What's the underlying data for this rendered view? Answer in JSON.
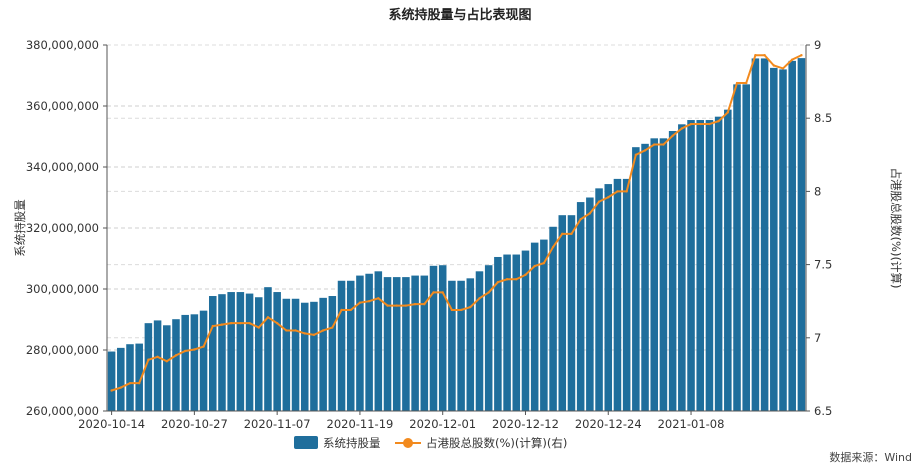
{
  "chart_data": {
    "type": "bar+line",
    "title": "系统持股量与占比表现图",
    "ylabel_left": "系统持股量",
    "ylabel_right": "占港股总股数(%)(计算)",
    "ylim_left": [
      260000000,
      380000000
    ],
    "yticks_left": [
      "260,000,000",
      "280,000,000",
      "300,000,000",
      "320,000,000",
      "340,000,000",
      "360,000,000",
      "380,000,000"
    ],
    "ylim_right": [
      6.5,
      9
    ],
    "yticks_right": [
      "6.5",
      "7",
      "7.5",
      "8",
      "8.5",
      "9"
    ],
    "xtick_labels": [
      "2020-10-14",
      "2020-10-27",
      "2020-11-07",
      "2020-11-19",
      "2020-12-01",
      "2020-12-12",
      "2020-12-24",
      "2021-01-08"
    ],
    "xtick_positions": [
      0,
      9,
      18,
      27,
      36,
      45,
      54,
      63
    ],
    "grid": "horizontal dashed",
    "legend_position": "bottom",
    "bar_color": "#1f6e9c",
    "line_color": "#f28a1e",
    "series": [
      {
        "name": "系统持股量",
        "type": "bar",
        "axis": "left",
        "values": [
          279500000,
          280700000,
          281900000,
          282100000,
          288800000,
          289700000,
          288100000,
          290100000,
          291500000,
          291700000,
          292900000,
          297700000,
          298300000,
          299000000,
          299000000,
          298500000,
          297300000,
          300600000,
          299000000,
          296800000,
          296800000,
          295500000,
          295800000,
          297100000,
          297700000,
          302700000,
          302700000,
          304400000,
          305000000,
          305800000,
          303900000,
          303900000,
          303900000,
          304400000,
          304400000,
          307600000,
          307800000,
          302700000,
          302700000,
          303500000,
          305800000,
          307800000,
          310500000,
          311300000,
          311300000,
          312600000,
          315200000,
          316200000,
          320400000,
          324200000,
          324200000,
          328500000,
          330000000,
          333000000,
          334400000,
          336100000,
          336100000,
          346500000,
          347600000,
          349400000,
          349400000,
          351800000,
          354000000,
          355400000,
          355400000,
          355400000,
          356500000,
          358800000,
          367100000,
          367100000,
          375600000,
          375600000,
          372500000,
          372000000,
          374800000,
          375700000
        ]
      },
      {
        "name": "占港股总股数(%)(计算)",
        "type": "line",
        "axis": "right",
        "values": [
          6.64,
          6.66,
          6.69,
          6.69,
          6.85,
          6.87,
          6.84,
          6.88,
          6.91,
          6.92,
          6.94,
          7.08,
          7.09,
          7.1,
          7.1,
          7.1,
          7.07,
          7.14,
          7.1,
          7.05,
          7.05,
          7.03,
          7.02,
          7.05,
          7.07,
          7.19,
          7.19,
          7.24,
          7.25,
          7.27,
          7.22,
          7.22,
          7.22,
          7.23,
          7.23,
          7.31,
          7.31,
          7.19,
          7.19,
          7.21,
          7.27,
          7.31,
          7.38,
          7.4,
          7.4,
          7.43,
          7.49,
          7.51,
          7.62,
          7.71,
          7.71,
          7.81,
          7.85,
          7.93,
          7.96,
          8.0,
          8.0,
          8.25,
          8.28,
          8.32,
          8.32,
          8.38,
          8.43,
          8.46,
          8.46,
          8.46,
          8.48,
          8.54,
          8.74,
          8.74,
          8.93,
          8.93,
          8.86,
          8.84,
          8.9,
          8.93
        ]
      }
    ]
  },
  "source_note": "数据来源：Wind"
}
